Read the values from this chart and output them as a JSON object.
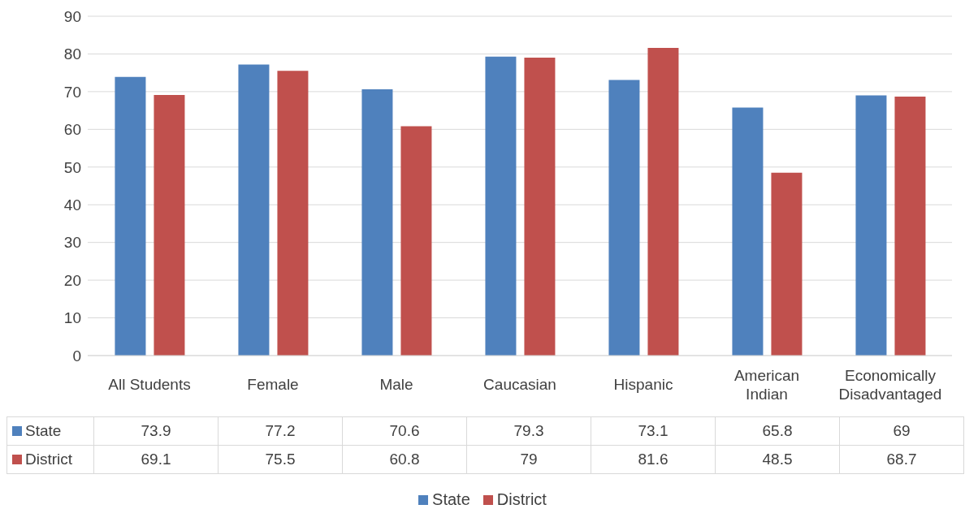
{
  "chart_data": {
    "type": "bar",
    "categories": [
      "All Students",
      "Female",
      "Male",
      "Caucasian",
      "Hispanic",
      "American Indian",
      "Economically Disadvantaged"
    ],
    "series": [
      {
        "name": "State",
        "color": "#4f81bd",
        "values": [
          73.9,
          77.2,
          70.6,
          79.3,
          73.1,
          65.8,
          69
        ]
      },
      {
        "name": "District",
        "color": "#c0504d",
        "values": [
          69.1,
          75.5,
          60.8,
          79,
          81.6,
          48.5,
          68.7
        ]
      }
    ],
    "ylim": [
      0,
      90
    ],
    "yticks": [
      0,
      10,
      20,
      30,
      40,
      50,
      60,
      70,
      80,
      90
    ],
    "grid": "y",
    "legend": "bottom",
    "data_labels": true
  }
}
